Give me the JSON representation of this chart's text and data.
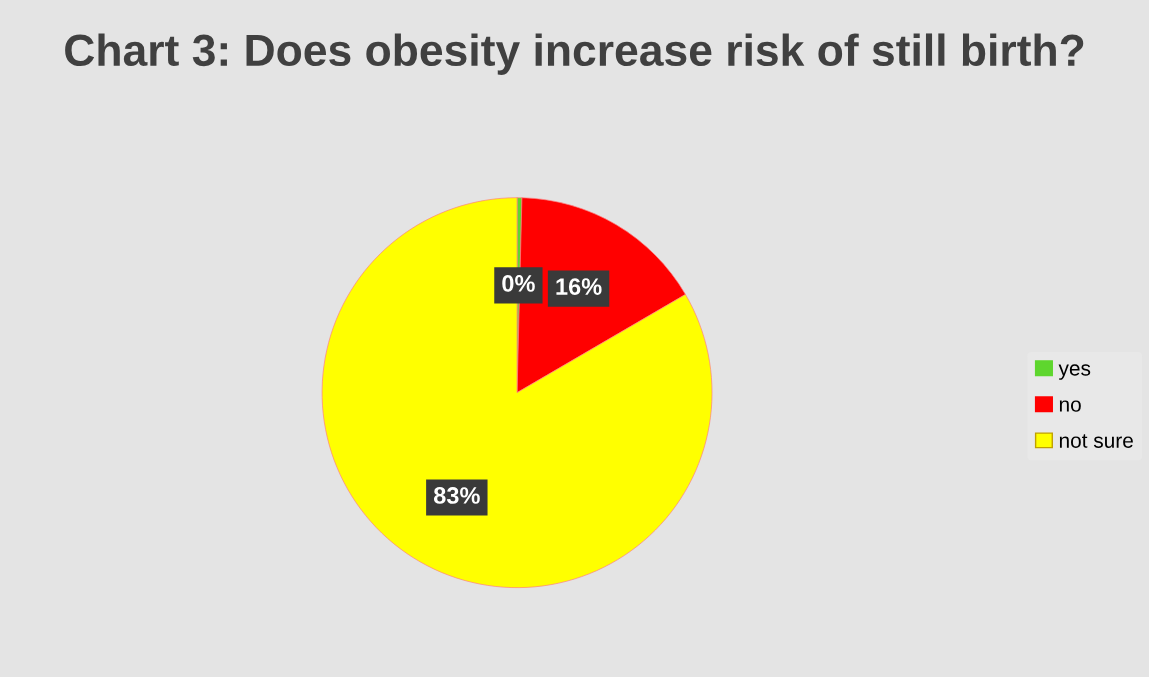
{
  "chart_data": {
    "type": "pie",
    "title": "Chart 3: Does obesity increase risk of still birth?",
    "categories": [
      "yes",
      "no",
      "not sure"
    ],
    "values": [
      0.4,
      16.2,
      83.4
    ],
    "value_labels": [
      "0%",
      "16%",
      "83%"
    ],
    "colors": [
      "#5ed62e",
      "#ff0000",
      "#ffff00"
    ],
    "legend": "right"
  }
}
